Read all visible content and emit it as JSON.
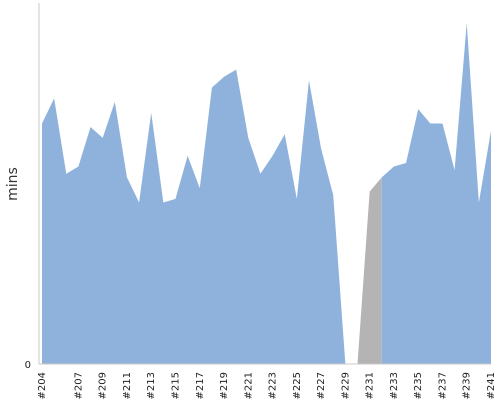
{
  "chart_data": {
    "type": "area",
    "ylabel": "mins",
    "ylim": [
      0,
      100
    ],
    "y_ticks": [
      0
    ],
    "x_tick_labels": [
      "#204",
      "#207",
      "#209",
      "#211",
      "#213",
      "#215",
      "#217",
      "#219",
      "#221",
      "#223",
      "#225",
      "#227",
      "#229",
      "#231",
      "#233",
      "#235",
      "#237",
      "#239",
      "#241"
    ],
    "x": [
      204,
      205,
      206,
      207,
      208,
      209,
      210,
      211,
      212,
      213,
      214,
      215,
      216,
      217,
      218,
      219,
      220,
      221,
      222,
      223,
      224,
      225,
      226,
      227,
      228,
      229,
      230,
      231,
      232,
      233,
      234,
      235,
      236,
      237,
      238,
      239,
      240,
      241
    ],
    "values": [
      67,
      74,
      53,
      55,
      66,
      63,
      73,
      52,
      45,
      70,
      45,
      46,
      58,
      49,
      77,
      80,
      82,
      63,
      53,
      58,
      64,
      46,
      79,
      60,
      47,
      0,
      0,
      48,
      52,
      55,
      56,
      71,
      67,
      67,
      54,
      95,
      45,
      65
    ],
    "gap_points": [
      230,
      231
    ],
    "colors": {
      "area": "#8fb2dc",
      "gap": "#b4b4b4",
      "axis": "#c8c8c8"
    },
    "grid": false
  }
}
